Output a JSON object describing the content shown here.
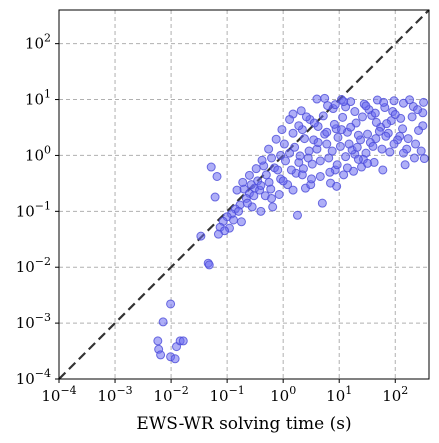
{
  "chart_data": {
    "type": "scatter",
    "title": "",
    "xlabel": "EWS-WR solving time (s)",
    "ylabel": "",
    "x_scale": "log",
    "y_scale": "log",
    "xlim": [
      0.0001,
      400
    ],
    "ylim": [
      0.0001,
      400
    ],
    "grid": true,
    "x_ticks": [
      0.0001,
      0.001,
      0.01,
      0.1,
      1,
      10,
      100
    ],
    "y_ticks": [
      0.0001,
      0.001,
      0.01,
      0.1,
      1,
      10,
      100
    ],
    "x_tick_labels": [
      {
        "base": "10",
        "exp": "−4"
      },
      {
        "base": "10",
        "exp": "−3"
      },
      {
        "base": "10",
        "exp": "−2"
      },
      {
        "base": "10",
        "exp": "−1"
      },
      {
        "base": "10",
        "exp": "0"
      },
      {
        "base": "10",
        "exp": "1"
      },
      {
        "base": "10",
        "exp": "2"
      }
    ],
    "y_tick_labels": [
      {
        "base": "10",
        "exp": "−4"
      },
      {
        "base": "10",
        "exp": "−3"
      },
      {
        "base": "10",
        "exp": "−2"
      },
      {
        "base": "10",
        "exp": "−1"
      },
      {
        "base": "10",
        "exp": "0"
      },
      {
        "base": "10",
        "exp": "1"
      },
      {
        "base": "10",
        "exp": "2"
      }
    ],
    "reference_line": {
      "from": [
        0.0001,
        0.0001
      ],
      "to": [
        400,
        400
      ],
      "style": "dashed",
      "color": "#333333"
    },
    "marker_color": "#6b6bf0",
    "marker_edge": "#4a4ad8",
    "points": [
      [
        0.0098,
        0.0022
      ],
      [
        0.0072,
        0.00105
      ],
      [
        0.0058,
        0.00048
      ],
      [
        0.006,
        0.00034
      ],
      [
        0.0065,
        0.00027
      ],
      [
        0.0098,
        0.00025
      ],
      [
        0.0118,
        0.00023
      ],
      [
        0.0125,
        0.00038
      ],
      [
        0.0145,
        0.00048
      ],
      [
        0.0165,
        0.00048
      ],
      [
        0.034,
        0.036
      ],
      [
        0.046,
        0.0118
      ],
      [
        0.048,
        0.011
      ],
      [
        0.052,
        0.62
      ],
      [
        0.061,
        0.18
      ],
      [
        0.066,
        0.42
      ],
      [
        0.2,
        0.25
      ],
      [
        0.25,
        0.21
      ],
      [
        0.31,
        0.26
      ],
      [
        0.38,
        0.24
      ],
      [
        0.48,
        0.19
      ],
      [
        0.62,
        0.17
      ],
      [
        0.85,
        0.2
      ],
      [
        1.8,
        0.085
      ],
      [
        2.5,
        0.26
      ],
      [
        3.1,
        0.3
      ],
      [
        7,
        0.32
      ],
      [
        9,
        0.28
      ],
      [
        5,
        0.14
      ],
      [
        1.5,
        5.5
      ],
      [
        3,
        4.4
      ],
      [
        4.2,
        3.3
      ],
      [
        6.2,
        7.8
      ],
      [
        8.8,
        3.0
      ],
      [
        11,
        10
      ],
      [
        2.1,
        6.3
      ],
      [
        13,
        7.4
      ],
      [
        16,
        9.2
      ],
      [
        28,
        8.3
      ],
      [
        38,
        5.2
      ],
      [
        55,
        3.2
      ],
      [
        75,
        2.5
      ],
      [
        95,
        9.5
      ],
      [
        140,
        8.6
      ],
      [
        210,
        7.5
      ],
      [
        310,
        3.4
      ],
      [
        330,
        0.88
      ],
      [
        310,
        5.8
      ],
      [
        230,
        1.6
      ],
      [
        160,
        1.3
      ],
      [
        120,
        2.2
      ],
      [
        85,
        4.2
      ],
      [
        45,
        2.0
      ],
      [
        25,
        0.62
      ],
      [
        18,
        0.52
      ],
      [
        12,
        0.45
      ],
      [
        8.5,
        0.55
      ],
      [
        24,
        1.9
      ],
      [
        30,
        1.1
      ],
      [
        42,
        0.75
      ],
      [
        60,
        0.55
      ],
      [
        150,
        0.68
      ],
      [
        20,
        3.8
      ],
      [
        9.5,
        2.1
      ],
      [
        6,
        1.6
      ],
      [
        4,
        1.3
      ],
      [
        2.8,
        0.9
      ],
      [
        1.9,
        0.75
      ],
      [
        1.3,
        1.1
      ],
      [
        0.9,
        1.0
      ],
      [
        0.7,
        0.6
      ],
      [
        0.5,
        0.45
      ],
      [
        0.35,
        0.35
      ],
      [
        0.27,
        0.3
      ],
      [
        0.22,
        0.17
      ],
      [
        0.17,
        0.13
      ],
      [
        0.14,
        0.11
      ],
      [
        0.12,
        0.09
      ],
      [
        0.1,
        0.08
      ],
      [
        0.085,
        0.066
      ],
      [
        0.075,
        0.052
      ],
      [
        0.18,
        0.065
      ],
      [
        0.28,
        0.12
      ],
      [
        0.45,
        0.65
      ],
      [
        0.62,
        0.9
      ],
      [
        1.05,
        1.6
      ],
      [
        1.5,
        2.5
      ],
      [
        2.2,
        2.9
      ],
      [
        3.5,
        1.9
      ],
      [
        5.5,
        2.4
      ],
      [
        7.5,
        1.2
      ],
      [
        10.5,
        1.45
      ],
      [
        14,
        2.6
      ],
      [
        19,
        1.05
      ],
      [
        26,
        4.9
      ],
      [
        34,
        6.6
      ],
      [
        48,
        9.8
      ],
      [
        65,
        7.2
      ],
      [
        90,
        6.1
      ],
      [
        125,
        4.6
      ],
      [
        180,
        9.9
      ],
      [
        260,
        2.8
      ],
      [
        200,
        4.9
      ],
      [
        110,
        1.9
      ],
      [
        80,
        1.15
      ],
      [
        58,
        1.3
      ],
      [
        36,
        1.7
      ],
      [
        22,
        2.3
      ],
      [
        16,
        3.2
      ],
      [
        11.5,
        4.8
      ],
      [
        7.8,
        6.9
      ],
      [
        5.2,
        5.1
      ],
      [
        3.6,
        3.8
      ],
      [
        2.4,
        2.0
      ],
      [
        1.6,
        1.4
      ],
      [
        1.1,
        0.8
      ],
      [
        0.8,
        0.55
      ],
      [
        0.56,
        0.33
      ],
      [
        0.4,
        0.29
      ],
      [
        0.3,
        0.19
      ],
      [
        0.23,
        0.14
      ],
      [
        0.16,
        0.1
      ],
      [
        0.13,
        0.07
      ],
      [
        0.11,
        0.05
      ],
      [
        0.09,
        0.045
      ],
      [
        0.07,
        0.039
      ],
      [
        0.4,
        0.1
      ],
      [
        0.65,
        0.12
      ],
      [
        1.2,
        0.3
      ],
      [
        1.7,
        0.48
      ],
      [
        2.3,
        0.58
      ],
      [
        3.3,
        0.7
      ],
      [
        4.6,
        0.8
      ],
      [
        6.5,
        0.9
      ],
      [
        9.2,
        0.68
      ],
      [
        13,
        0.95
      ],
      [
        17,
        1.25
      ],
      [
        27,
        0.85
      ],
      [
        40,
        1.45
      ],
      [
        52,
        2.7
      ],
      [
        70,
        3.7
      ],
      [
        100,
        5.4
      ],
      [
        135,
        3.0
      ],
      [
        170,
        2.0
      ],
      [
        250,
        6.6
      ],
      [
        320,
        8.9
      ],
      [
        290,
        1.2
      ],
      [
        4,
        10.2
      ],
      [
        5.5,
        10.5
      ],
      [
        12,
        9.2
      ],
      [
        8.5,
        8.1
      ],
      [
        19,
        6.1
      ],
      [
        30,
        7.7
      ],
      [
        44,
        5.7
      ],
      [
        62,
        8.9
      ],
      [
        1.3,
        4.4
      ],
      [
        1.9,
        3.4
      ],
      [
        2.6,
        4.9
      ],
      [
        0.95,
        2.9
      ],
      [
        0.75,
        1.95
      ],
      [
        0.55,
        1.3
      ],
      [
        0.42,
        0.82
      ],
      [
        0.33,
        0.58
      ],
      [
        0.25,
        0.44
      ],
      [
        0.19,
        0.33
      ],
      [
        0.15,
        0.24
      ],
      [
        0.6,
        0.25
      ],
      [
        0.9,
        0.38
      ],
      [
        1.4,
        0.55
      ],
      [
        2.0,
        0.98
      ],
      [
        2.9,
        1.2
      ],
      [
        4.2,
        1.7
      ],
      [
        6.0,
        2.6
      ],
      [
        8.2,
        3.6
      ],
      [
        11,
        2.9
      ],
      [
        15,
        1.6
      ],
      [
        21,
        1.4
      ],
      [
        32,
        2.4
      ],
      [
        46,
        3.9
      ],
      [
        68,
        2.2
      ],
      [
        95,
        1.6
      ],
      [
        140,
        1.1
      ],
      [
        220,
        0.9
      ],
      [
        32,
        0.72
      ],
      [
        22,
        0.85
      ],
      [
        14,
        0.6
      ],
      [
        6.8,
        0.5
      ],
      [
        4.6,
        0.42
      ],
      [
        3.2,
        0.38
      ],
      [
        2.2,
        0.45
      ],
      [
        1.5,
        0.24
      ],
      [
        1.0,
        0.35
      ]
    ]
  }
}
